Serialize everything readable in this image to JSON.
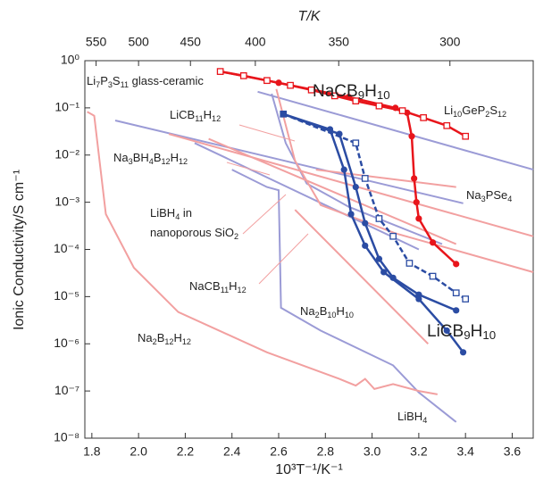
{
  "chart_data": {
    "type": "line",
    "xlabel": "10³T⁻¹/K⁻¹",
    "ylabel": "Ionic Conductivity/S cm⁻¹",
    "x2label": "T/K",
    "xlim": [
      1.77,
      3.69
    ],
    "xticks": [
      1.8,
      {
        "value": 2,
        "label": "2.0"
      },
      2.2,
      2.4,
      2.6,
      2.8,
      {
        "value": 3,
        "label": "3.0"
      },
      3.2,
      3.4,
      3.6
    ],
    "x2ticks": [
      550,
      500,
      450,
      400,
      350,
      300
    ],
    "ylim": [
      1e-08,
      1
    ],
    "ylog": true,
    "yticks": [
      {
        "value": 1,
        "label": "10⁰"
      },
      {
        "value": 0.1,
        "label": "10⁻¹"
      },
      {
        "value": 0.01,
        "label": "10⁻²"
      },
      {
        "value": 0.001,
        "label": "10⁻³"
      },
      {
        "value": 0.0001,
        "label": "10⁻⁴"
      },
      {
        "value": 1e-05,
        "label": "10⁻⁵"
      },
      {
        "value": 1e-06,
        "label": "10⁻⁶"
      },
      {
        "value": 1e-07,
        "label": "10⁻⁷"
      },
      {
        "value": 1e-08,
        "label": "10⁻⁸"
      }
    ],
    "annotations": [
      "Li7P3S11 glass-ceramic",
      "NaCB9H10",
      "Li10GeP2S12",
      "LiCB11H12",
      "Na3BH4B12H12",
      "Na3PSe4",
      "LiBH4 in",
      "nanoporous SiO2",
      "NaCB11H12",
      "Na2B10H10",
      "LiCB9H10",
      "Na2B12H12",
      "LiBH4"
    ],
    "series": [
      {
        "color": "#9b9bd6",
        "x": [
          1.9,
          3.39
        ],
        "values": [
          0.054,
          0.00095
        ]
      },
      {
        "color": "#9b9bd6",
        "x": [
          2.51,
          3.69
        ],
        "values": [
          0.22,
          0.0049
        ]
      },
      {
        "color": "#9b9bd6",
        "x": [
          2.57,
          2.63,
          2.72,
          2.9,
          3.3
        ],
        "values": [
          0.2,
          0.018,
          0.0025,
          0.0008,
          0.00013
        ]
      },
      {
        "color": "#9b9bd6",
        "x": [
          2.24,
          3.2
        ],
        "values": [
          0.018,
          0.0001
        ]
      },
      {
        "color": "#9b9bd6",
        "x": [
          2.4,
          2.55,
          2.6,
          2.61,
          2.78,
          3.09,
          3.2,
          3.36
        ],
        "values": [
          0.0049,
          0.0021,
          0.0018,
          5.8e-06,
          1.9e-06,
          3.5e-07,
          9.3e-08,
          2.2e-08
        ]
      },
      {
        "color": "#f2a0a0",
        "x": [
          2.13,
          3.69
        ],
        "values": [
          0.028,
          0.00019
        ]
      },
      {
        "color": "#f2a0a0",
        "x": [
          2.76,
          3.36
        ],
        "values": [
          0.0049,
          0.0021
        ]
      },
      {
        "color": "#f2a0a0",
        "x": [
          2.59,
          2.67,
          2.78,
          3.1,
          3.69
        ],
        "values": [
          0.25,
          0.0076,
          0.00087,
          0.00022,
          3.3e-05
        ]
      },
      {
        "color": "#f2a0a0",
        "x": [
          2.67,
          3.24
        ],
        "values": [
          0.00069,
          1e-06
        ]
      },
      {
        "color": "#f2a0a0",
        "x": [
          2.3,
          3.36
        ],
        "values": [
          0.022,
          0.00013
        ]
      },
      {
        "color": "#f2a0a0",
        "x": [
          1.78,
          1.81,
          1.86,
          1.98,
          2.17,
          2.55,
          2.86,
          2.93,
          2.97,
          3.01,
          3.09,
          3.2,
          3.28
        ],
        "values": [
          0.083,
          0.068,
          0.00056,
          4.1e-05,
          4.7e-06,
          6.6e-07,
          1.8e-07,
          1.3e-07,
          1.8e-07,
          1.1e-07,
          1.4e-07,
          1e-07,
          8.5e-08
        ]
      },
      {
        "color": "#e8151b",
        "marker": "circle",
        "x": [
          2.35,
          2.6,
          2.9,
          3.1,
          3.15,
          3.17,
          3.18,
          3.19,
          3.2,
          3.26,
          3.36
        ],
        "values": [
          0.59,
          0.34,
          0.17,
          0.1,
          0.079,
          0.025,
          0.0032,
          0.001,
          0.00045,
          0.00014,
          4.9e-05
        ]
      },
      {
        "color": "#e8151b",
        "marker": "square-open",
        "x": [
          2.35,
          2.45,
          2.55,
          2.65,
          2.74,
          2.84,
          2.93,
          3.03,
          3.13,
          3.22,
          3.32,
          3.4
        ],
        "values": [
          0.59,
          0.48,
          0.38,
          0.3,
          0.24,
          0.18,
          0.14,
          0.11,
          0.087,
          0.062,
          0.042,
          0.025
        ]
      },
      {
        "color": "#2b4ca3",
        "marker": "square-open",
        "dashed": true,
        "x": [
          2.62,
          2.93,
          2.97,
          3.03,
          3.09,
          3.16,
          3.26,
          3.36,
          3.4
        ],
        "values": [
          0.074,
          0.018,
          0.0032,
          0.00045,
          0.00019,
          5.1e-05,
          2.7e-05,
          1.2e-05,
          8.9e-06
        ]
      },
      {
        "color": "#2b4ca3",
        "marker": "circle",
        "x": [
          2.62,
          2.86,
          2.93,
          2.97,
          3.03,
          3.09,
          3.2,
          3.36
        ],
        "values": [
          0.074,
          0.028,
          0.0021,
          0.00036,
          6.3e-05,
          2.5e-05,
          1.1e-05,
          5.1e-06
        ]
      },
      {
        "color": "#2b4ca3",
        "marker": "circle",
        "x": [
          2.62,
          2.82,
          2.88,
          2.91,
          2.97,
          3.05,
          3.2,
          3.32,
          3.39
        ],
        "values": [
          0.074,
          0.035,
          0.0049,
          0.00056,
          0.00012,
          3.3e-05,
          8.9e-06,
          1.9e-06,
          6.6e-07
        ]
      }
    ]
  }
}
